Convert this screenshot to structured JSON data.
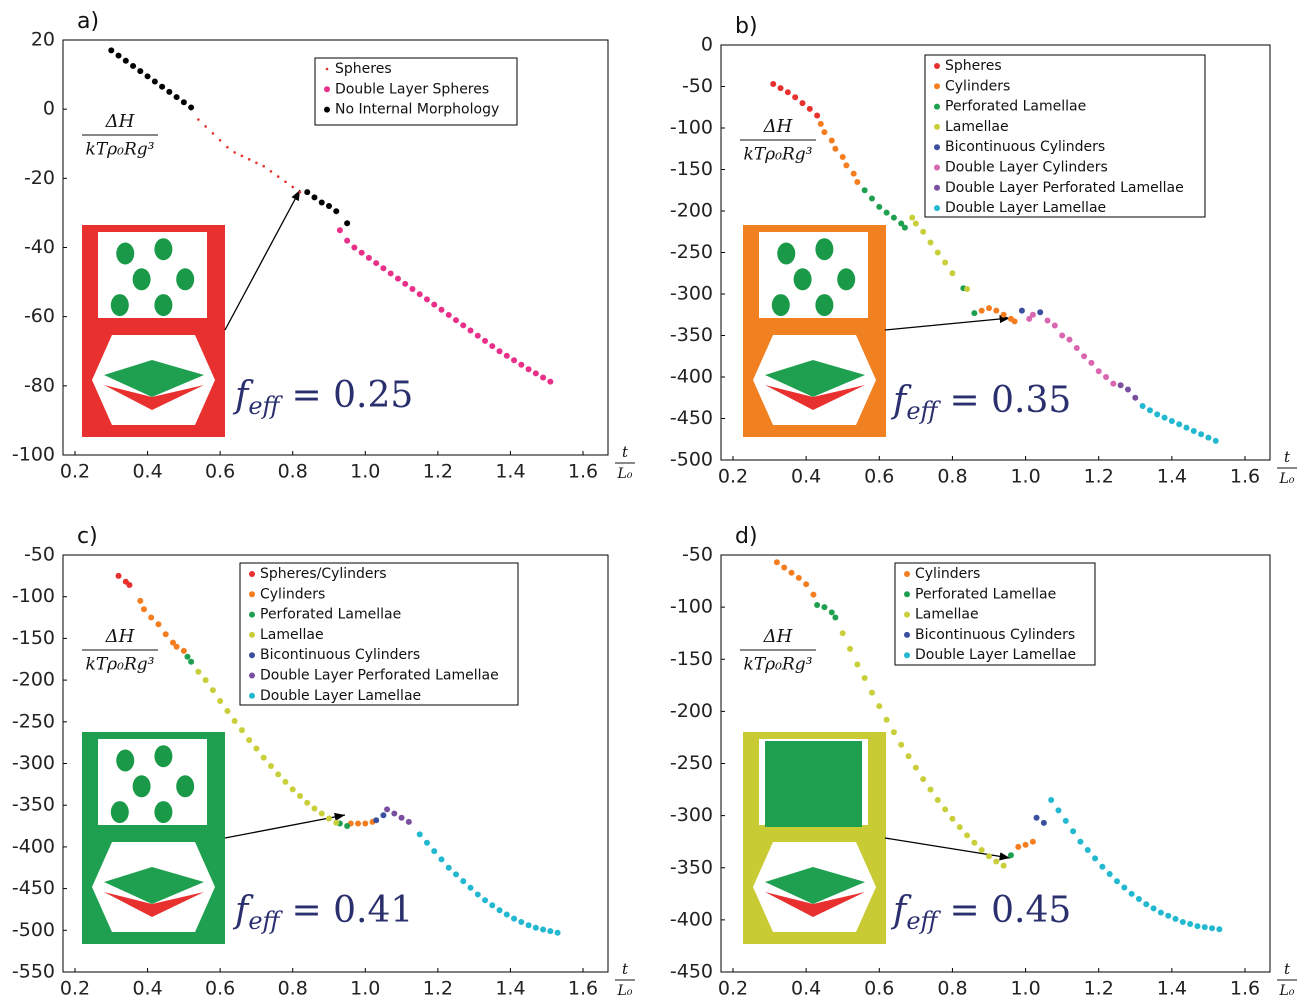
{
  "chart_data": [
    {
      "type": "scatter",
      "title": "a)",
      "ylabel": {
        "numerator": "ΔH",
        "denominator": "kTρ₀Rg³"
      },
      "xlabel": {
        "numerator": "t",
        "denominator": "L₀"
      },
      "annotation_symbol": "f",
      "annotation_subscript": "eff",
      "annotation_value": "= 0.25",
      "xlim": [
        0.2,
        1.6
      ],
      "ylim": [
        -100,
        20
      ],
      "xticks": [
        0.2,
        0.4,
        0.6,
        0.8,
        {
          "value": 1,
          "label": "1.0"
        },
        1.2,
        1.4,
        1.6
      ],
      "yticks": [
        20,
        0,
        -20,
        -40,
        -60,
        -80,
        -100
      ],
      "legend": true,
      "series": [
        {
          "name": "Spheres",
          "color": "#e8312f",
          "marker": "point",
          "x": [
            0.54,
            0.56,
            0.58,
            0.6,
            0.62,
            0.64,
            0.66,
            0.68,
            0.7,
            0.72,
            0.74,
            0.76,
            0.78,
            0.8,
            0.82
          ],
          "values": [
            -3,
            -5,
            -7,
            -9,
            -11,
            -12.5,
            -13.5,
            -14.5,
            -15.5,
            -16.5,
            -18,
            -19.5,
            -21,
            -22.5,
            -24
          ]
        },
        {
          "name": "Double Layer Spheres",
          "color": "#e8308a",
          "x": [
            0.93,
            0.95,
            0.97,
            0.99,
            1.01,
            1.03,
            1.05,
            1.07,
            1.09,
            1.11,
            1.13,
            1.15,
            1.17,
            1.19,
            1.21,
            1.23,
            1.25,
            1.27,
            1.29,
            1.31,
            1.33,
            1.35,
            1.37,
            1.39,
            1.41,
            1.43,
            1.45,
            1.47,
            1.49,
            1.51
          ],
          "values": [
            -35,
            -38,
            -40,
            -41.5,
            -43,
            -44.5,
            -46,
            -47.5,
            -49,
            -50.5,
            -52,
            -53.5,
            -55,
            -56.5,
            -58,
            -59.5,
            -61,
            -62.5,
            -64,
            -65.5,
            -67,
            -68.5,
            -70,
            -71.3,
            -72.6,
            -73.9,
            -75.2,
            -76.4,
            -77.6,
            -78.8
          ]
        },
        {
          "name": "No Internal Morphology",
          "color": "#000000",
          "x": [
            0.3,
            0.32,
            0.34,
            0.36,
            0.38,
            0.4,
            0.42,
            0.44,
            0.46,
            0.48,
            0.5,
            0.52,
            0.84,
            0.86,
            0.88,
            0.9,
            0.92,
            0.95
          ],
          "values": [
            17,
            15.5,
            14,
            12.5,
            11,
            9.5,
            8,
            6.5,
            5,
            3.5,
            2,
            0.5,
            -24,
            -25.5,
            -27,
            -28,
            -29.5,
            -33
          ]
        }
      ]
    },
    {
      "type": "scatter",
      "title": "b)",
      "ylabel": {
        "numerator": "ΔH",
        "denominator": "kTρ₀Rg³"
      },
      "xlabel": {
        "numerator": "t",
        "denominator": "L₀"
      },
      "annotation_symbol": "f",
      "annotation_subscript": "eff",
      "annotation_value": "= 0.35",
      "xlim": [
        0.2,
        1.6
      ],
      "ylim": [
        -500,
        0
      ],
      "xticks": [
        0.2,
        0.4,
        0.6,
        0.8,
        {
          "value": 1,
          "label": "1.0"
        },
        1.2,
        1.4,
        1.6
      ],
      "yticks": [
        0,
        -50,
        -100,
        -150,
        -200,
        -250,
        -300,
        -350,
        -400,
        -450,
        -500
      ],
      "legend": true,
      "series": [
        {
          "name": "Spheres",
          "color": "#e8312f",
          "x": [
            0.31,
            0.33,
            0.35,
            0.37,
            0.39,
            0.41,
            0.43
          ],
          "values": [
            -47,
            -52,
            -57,
            -63,
            -70,
            -77,
            -85
          ]
        },
        {
          "name": "Cylinders",
          "color": "#f47d20",
          "x": [
            0.44,
            0.45,
            0.47,
            0.48,
            0.5,
            0.51,
            0.53,
            0.54,
            0.88,
            0.9,
            0.92,
            0.94,
            0.96,
            0.97
          ],
          "values": [
            -95,
            -105,
            -115,
            -125,
            -135,
            -145,
            -155,
            -165,
            -320,
            -317,
            -320,
            -325,
            -330,
            -333
          ]
        },
        {
          "name": "Perforated Lamellae",
          "color": "#1fa050",
          "x": [
            0.56,
            0.58,
            0.6,
            0.62,
            0.64,
            0.66,
            0.67,
            0.83,
            0.86
          ],
          "values": [
            -175,
            -185,
            -195,
            -202,
            -208,
            -215,
            -220,
            -293,
            -323
          ]
        },
        {
          "name": "Lamellae",
          "color": "#c9cf3a",
          "x": [
            0.69,
            0.7,
            0.72,
            0.74,
            0.76,
            0.78,
            0.8,
            0.84
          ],
          "values": [
            -208,
            -215,
            -225,
            -238,
            -250,
            -262,
            -275,
            -294
          ]
        },
        {
          "name": "Bicontinuous Cylinders",
          "color": "#3a4fa0",
          "x": [
            0.99,
            1.04
          ],
          "values": [
            -320,
            -322
          ]
        },
        {
          "name": "Double Layer Cylinders",
          "color": "#d966b0",
          "x": [
            1.01,
            1.02,
            1.06,
            1.08,
            1.1,
            1.12,
            1.14,
            1.16,
            1.18,
            1.2,
            1.22,
            1.24
          ],
          "values": [
            -330,
            -325,
            -332,
            -338,
            -350,
            -355,
            -365,
            -375,
            -383,
            -393,
            -400,
            -408
          ]
        },
        {
          "name": "Double Layer Perforated Lamellae",
          "color": "#7a4fa0",
          "x": [
            1.26,
            1.28,
            1.3
          ],
          "values": [
            -410,
            -415,
            -425
          ]
        },
        {
          "name": "Double Layer Lamellae",
          "color": "#22b8d0",
          "x": [
            1.32,
            1.34,
            1.36,
            1.38,
            1.4,
            1.42,
            1.44,
            1.46,
            1.48,
            1.5,
            1.52
          ],
          "values": [
            -435,
            -440,
            -445,
            -449,
            -453,
            -457,
            -461,
            -465,
            -469,
            -473,
            -477
          ]
        }
      ]
    },
    {
      "type": "scatter",
      "title": "c)",
      "ylabel": {
        "numerator": "ΔH",
        "denominator": "kTρ₀Rg³"
      },
      "xlabel": {
        "numerator": "t",
        "denominator": "L₀"
      },
      "annotation_symbol": "f",
      "annotation_subscript": "eff",
      "annotation_value": "= 0.41",
      "xlim": [
        0.2,
        1.6
      ],
      "ylim": [
        -550,
        -50
      ],
      "xticks": [
        0.2,
        0.4,
        0.6,
        0.8,
        {
          "value": 1,
          "label": "1.0"
        },
        1.2,
        1.4,
        1.6
      ],
      "yticks": [
        -50,
        -100,
        -150,
        -200,
        -250,
        -300,
        -350,
        -400,
        -450,
        -500,
        -550
      ],
      "legend": true,
      "series": [
        {
          "name": "Spheres/Cylinders",
          "color": "#e8312f",
          "x": [
            0.32,
            0.34,
            0.35
          ],
          "values": [
            -75,
            -82,
            -86
          ]
        },
        {
          "name": "Cylinders",
          "color": "#f47d20",
          "x": [
            0.38,
            0.39,
            0.41,
            0.43,
            0.45,
            0.47,
            0.48,
            0.5,
            0.96,
            0.98,
            1.0,
            1.02
          ],
          "values": [
            -105,
            -115,
            -125,
            -133,
            -145,
            -155,
            -160,
            -165,
            -372,
            -372,
            -372,
            -370
          ]
        },
        {
          "name": "Perforated Lamellae",
          "color": "#1fa050",
          "x": [
            0.51,
            0.52,
            0.93,
            0.95
          ],
          "values": [
            -172,
            -178,
            -372,
            -375
          ]
        },
        {
          "name": "Lamellae",
          "color": "#c9cf3a",
          "x": [
            0.54,
            0.56,
            0.58,
            0.6,
            0.62,
            0.64,
            0.66,
            0.68,
            0.7,
            0.72,
            0.74,
            0.76,
            0.78,
            0.8,
            0.82,
            0.84,
            0.86,
            0.88,
            0.9,
            0.92
          ],
          "values": [
            -190,
            -200,
            -212,
            -225,
            -237,
            -249,
            -260,
            -272,
            -282,
            -293,
            -303,
            -313,
            -322,
            -331,
            -339,
            -347,
            -354,
            -360,
            -366,
            -371
          ]
        },
        {
          "name": "Bicontinuous Cylinders",
          "color": "#3a4fa0",
          "x": [
            1.03,
            1.05
          ],
          "values": [
            -368,
            -362
          ]
        },
        {
          "name": "Double Layer Perforated Lamellae",
          "color": "#7a4fa0",
          "x": [
            1.06,
            1.08,
            1.1,
            1.12
          ],
          "values": [
            -355,
            -360,
            -365,
            -370
          ]
        },
        {
          "name": "Double Layer Lamellae",
          "color": "#22b8d0",
          "x": [
            1.15,
            1.17,
            1.19,
            1.21,
            1.23,
            1.25,
            1.27,
            1.29,
            1.31,
            1.33,
            1.35,
            1.37,
            1.39,
            1.41,
            1.43,
            1.45,
            1.47,
            1.49,
            1.51,
            1.53
          ],
          "values": [
            -385,
            -395,
            -405,
            -415,
            -425,
            -433,
            -441,
            -449,
            -457,
            -464,
            -470,
            -476,
            -481,
            -486,
            -490,
            -494,
            -497,
            -499,
            -501,
            -503
          ]
        }
      ]
    },
    {
      "type": "scatter",
      "title": "d)",
      "ylabel": {
        "numerator": "ΔH",
        "denominator": "kTρ₀Rg³"
      },
      "xlabel": {
        "numerator": "t",
        "denominator": "L₀"
      },
      "annotation_symbol": "f",
      "annotation_subscript": "eff",
      "annotation_value": "= 0.45",
      "xlim": [
        0.2,
        1.6
      ],
      "ylim": [
        -450,
        -50
      ],
      "xticks": [
        0.2,
        0.4,
        0.6,
        0.8,
        {
          "value": 1,
          "label": "1.0"
        },
        1.2,
        1.4,
        1.6
      ],
      "yticks": [
        -50,
        -100,
        -150,
        -200,
        -250,
        -300,
        -350,
        -400,
        -450
      ],
      "legend": true,
      "series": [
        {
          "name": "Cylinders",
          "color": "#f47d20",
          "x": [
            0.32,
            0.34,
            0.36,
            0.38,
            0.4,
            0.42,
            0.98,
            1.0,
            1.02
          ],
          "values": [
            -57,
            -62,
            -67,
            -72,
            -78,
            -88,
            -330,
            -328,
            -325
          ]
        },
        {
          "name": "Perforated Lamellae",
          "color": "#1fa050",
          "x": [
            0.43,
            0.45,
            0.47,
            0.48,
            0.96
          ],
          "values": [
            -98,
            -100,
            -105,
            -110,
            -338
          ]
        },
        {
          "name": "Lamellae",
          "color": "#c9cf3a",
          "x": [
            0.5,
            0.52,
            0.54,
            0.56,
            0.58,
            0.6,
            0.62,
            0.64,
            0.66,
            0.68,
            0.7,
            0.72,
            0.74,
            0.76,
            0.78,
            0.8,
            0.82,
            0.84,
            0.86,
            0.88,
            0.9,
            0.92,
            0.94
          ],
          "values": [
            -125,
            -140,
            -155,
            -168,
            -182,
            -195,
            -208,
            -220,
            -232,
            -243,
            -254,
            -265,
            -275,
            -285,
            -294,
            -303,
            -311,
            -319,
            -326,
            -333,
            -339,
            -344,
            -348
          ]
        },
        {
          "name": "Bicontinuous Cylinders",
          "color": "#3a4fa0",
          "x": [
            1.03,
            1.05
          ],
          "values": [
            -302,
            -307
          ]
        },
        {
          "name": "Double Layer Lamellae",
          "color": "#22b8d0",
          "x": [
            1.07,
            1.09,
            1.11,
            1.13,
            1.15,
            1.17,
            1.19,
            1.21,
            1.23,
            1.25,
            1.27,
            1.29,
            1.31,
            1.33,
            1.35,
            1.37,
            1.39,
            1.41,
            1.43,
            1.45,
            1.47,
            1.49,
            1.51,
            1.53
          ],
          "values": [
            -285,
            -295,
            -305,
            -315,
            -325,
            -333,
            -341,
            -349,
            -356,
            -363,
            -369,
            -375,
            -380,
            -385,
            -389,
            -393,
            -396,
            -399,
            -402,
            -404,
            -406,
            -407,
            -408,
            -409
          ]
        }
      ]
    }
  ]
}
